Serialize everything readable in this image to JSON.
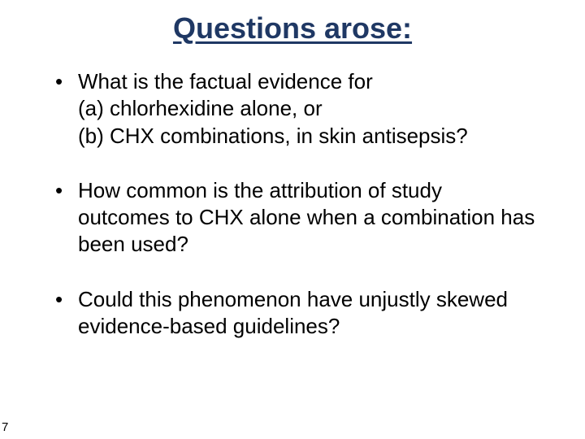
{
  "colors": {
    "background": "#ffffff",
    "title": "#1f3864",
    "body_text": "#000000",
    "underline": "#1f3864"
  },
  "typography": {
    "title_fontsize": 36,
    "title_weight": "bold",
    "body_fontsize": 26,
    "page_num_fontsize": 15,
    "font_family": "Arial"
  },
  "title": "Questions arose:",
  "bullets": [
    {
      "line1": "What is the factual evidence for",
      "line2": "(a) chlorhexidine alone, or",
      "line3": "(b) CHX combinations, in skin antisepsis?"
    },
    {
      "line1": "How common is the attribution of study outcomes to CHX alone when a combination has been used?"
    },
    {
      "line1": "Could this phenomenon have unjustly skewed evidence-based guidelines?"
    }
  ],
  "page_number": "7"
}
